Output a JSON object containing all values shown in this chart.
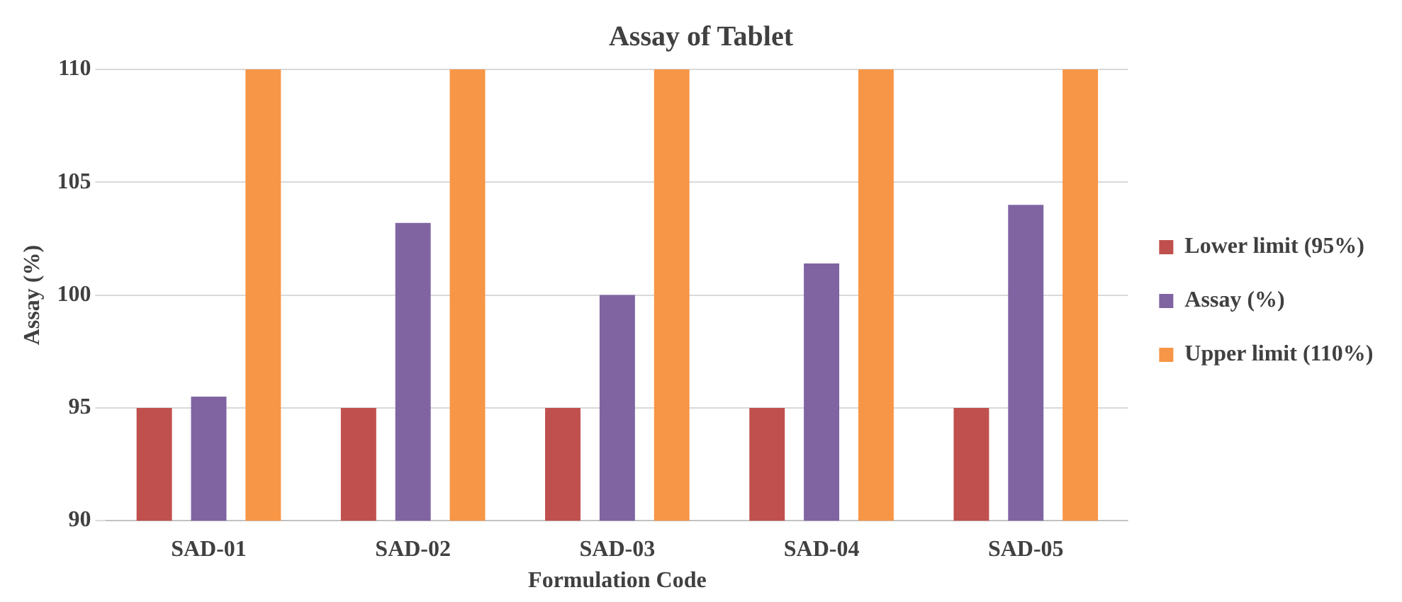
{
  "chart_data": {
    "type": "bar",
    "title": "Assay of Tablet",
    "xlabel": "Formulation Code",
    "ylabel": "Assay (%)",
    "categories": [
      "SAD-01",
      "SAD-02",
      "SAD-03",
      "SAD-04",
      "SAD-05"
    ],
    "series": [
      {
        "name": "Lower limit (95%)",
        "color": "#c0504d",
        "values": [
          95,
          95,
          95,
          95,
          95
        ]
      },
      {
        "name": "Assay (%)",
        "color": "#8064a2",
        "values": [
          95.5,
          103.2,
          100,
          101.4,
          104
        ]
      },
      {
        "name": "Upper limit (110%)",
        "color": "#f79646",
        "values": [
          110,
          110,
          110,
          110,
          110
        ]
      }
    ],
    "ylim": [
      90,
      110
    ],
    "yticks": [
      90,
      95,
      100,
      105,
      110
    ],
    "grid": "y",
    "legend": "right"
  }
}
